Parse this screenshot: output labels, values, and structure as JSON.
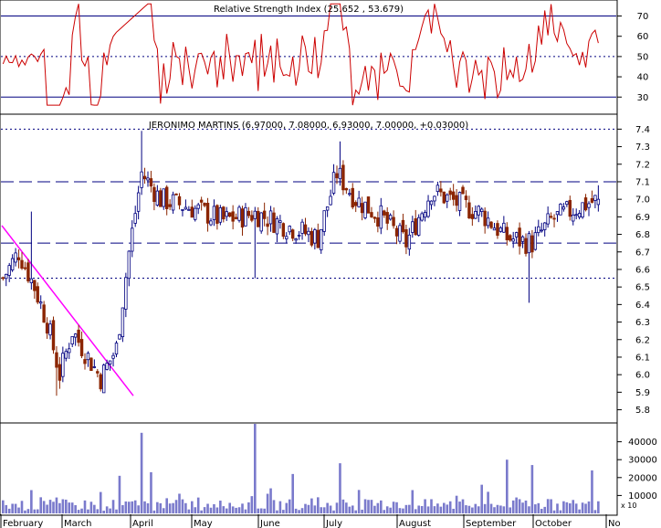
{
  "chart_data": {
    "type": "candlestick",
    "title": "JERONIMO MARTINS (6.97000, 7.08000, 6.93000, 7.00000, +0.03000)",
    "rsi_panel": {
      "title": "Relative Strength Index (25.652 , 53.679)",
      "ticks": [
        "70",
        "60",
        "50",
        "40",
        "30"
      ],
      "ylim": [
        22,
        77
      ],
      "reference_lines": [
        70,
        50,
        30
      ]
    },
    "price_panel": {
      "ticks": [
        "7.4",
        "7.3",
        "7.2",
        "7.1",
        "7.0",
        "6.9",
        "6.8",
        "6.7",
        "6.6",
        "6.5",
        "6.4",
        "6.3",
        "6.2",
        "6.1",
        "6.0",
        "5.9",
        "5.8"
      ],
      "ylim": [
        5.73,
        7.48
      ],
      "dashed_levels": [
        7.1,
        6.75
      ],
      "dotted_levels": [
        7.4,
        6.55
      ],
      "trendline": {
        "from": {
          "x": 0,
          "y": 6.85
        },
        "to": {
          "x": 40,
          "y": 5.88
        }
      },
      "colors": {
        "up": "#000080",
        "down": "#8b2500",
        "trendline": "#ff00ff"
      }
    },
    "volume_panel": {
      "ticks": [
        "40000",
        "30000",
        "20000",
        "10000"
      ],
      "ylim": [
        0,
        50000
      ],
      "corner_label": "x 10"
    },
    "months": [
      "February",
      "March",
      "April",
      "May",
      "June",
      "July",
      "August",
      "September",
      "October",
      "No"
    ],
    "bars_count": 190
  }
}
